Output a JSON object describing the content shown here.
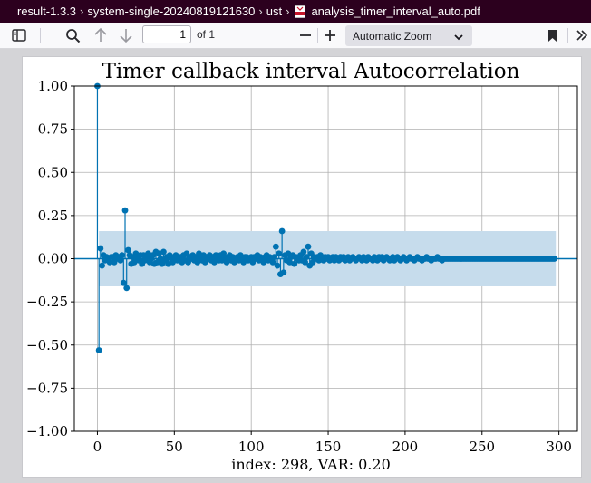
{
  "breadcrumb": {
    "items": [
      "result-1.3.3",
      "system-single-20240819121630",
      "ust"
    ],
    "file_name": "analysis_timer_interval_auto.pdf"
  },
  "toolbar": {
    "page_number": "1",
    "page_count_label": "of 1",
    "zoom_label": "Automatic Zoom"
  },
  "icons": [
    "sidebar-toggle-icon",
    "search-icon",
    "arrow-up-icon",
    "arrow-down-icon",
    "zoom-out-icon",
    "zoom-in-icon",
    "chevron-down-icon",
    "bookmark-icon",
    "double-chevron-right-icon",
    "pdf-file-icon"
  ],
  "colors": {
    "series": "#0072b2",
    "confidence_band": "#c6dcec",
    "breadcrumb_bg": "#2c001e"
  },
  "chart_data": {
    "type": "stem",
    "title": "Timer callback interval Autocorrelation",
    "xlabel": "index: 298, VAR: 0.20",
    "ylabel": "",
    "xlim": [
      -15,
      312
    ],
    "ylim": [
      -1.0,
      1.0
    ],
    "xticks": [
      "0",
      "50",
      "100",
      "150",
      "200",
      "250",
      "300"
    ],
    "yticks": [
      "1.00",
      "0.75",
      "0.50",
      "0.25",
      "0.00",
      "−0.25",
      "−0.50",
      "−0.75",
      "−1.00"
    ],
    "ytick_values": [
      1.0,
      0.75,
      0.5,
      0.25,
      0.0,
      -0.25,
      -0.5,
      -0.75,
      -1.0
    ],
    "xtick_values": [
      0,
      50,
      100,
      150,
      200,
      250,
      300
    ],
    "grid": true,
    "confidence_band": {
      "x_range": [
        1,
        298
      ],
      "upper": 0.16,
      "lower": -0.16
    },
    "points": [
      [
        0,
        1.0
      ],
      [
        1,
        -0.53
      ],
      [
        2,
        0.06
      ],
      [
        3,
        -0.04
      ],
      [
        4,
        0.02
      ],
      [
        5,
        -0.01
      ],
      [
        6,
        0.01
      ],
      [
        7,
        0.0
      ],
      [
        8,
        -0.02
      ],
      [
        9,
        0.01
      ],
      [
        10,
        0.01
      ],
      [
        11,
        -0.02
      ],
      [
        12,
        0.02
      ],
      [
        13,
        0.0
      ],
      [
        14,
        0.01
      ],
      [
        15,
        -0.01
      ],
      [
        16,
        0.02
      ],
      [
        17,
        -0.14
      ],
      [
        18,
        0.28
      ],
      [
        19,
        -0.17
      ],
      [
        20,
        0.05
      ],
      [
        21,
        0.02
      ],
      [
        22,
        -0.03
      ],
      [
        23,
        0.01
      ],
      [
        24,
        -0.02
      ],
      [
        25,
        0.03
      ],
      [
        26,
        0.0
      ],
      [
        27,
        -0.01
      ],
      [
        28,
        0.02
      ],
      [
        29,
        -0.03
      ],
      [
        30,
        0.02
      ],
      [
        31,
        -0.01
      ],
      [
        32,
        0.01
      ],
      [
        33,
        0.03
      ],
      [
        34,
        -0.02
      ],
      [
        35,
        0.0
      ],
      [
        36,
        0.02
      ],
      [
        37,
        -0.03
      ],
      [
        38,
        0.04
      ],
      [
        39,
        -0.02
      ],
      [
        40,
        0.03
      ],
      [
        41,
        0.0
      ],
      [
        42,
        -0.03
      ],
      [
        43,
        0.04
      ],
      [
        44,
        -0.01
      ],
      [
        45,
        0.01
      ],
      [
        46,
        -0.03
      ],
      [
        47,
        0.02
      ],
      [
        48,
        0.0
      ],
      [
        49,
        -0.02
      ],
      [
        50,
        0.01
      ],
      [
        51,
        0.02
      ],
      [
        52,
        -0.01
      ],
      [
        53,
        0.0
      ],
      [
        54,
        0.01
      ],
      [
        55,
        -0.02
      ],
      [
        56,
        0.02
      ],
      [
        57,
        -0.01
      ],
      [
        58,
        0.03
      ],
      [
        59,
        -0.02
      ],
      [
        60,
        0.01
      ],
      [
        61,
        0.0
      ],
      [
        62,
        0.02
      ],
      [
        63,
        -0.01
      ],
      [
        64,
        0.01
      ],
      [
        65,
        -0.02
      ],
      [
        66,
        0.03
      ],
      [
        67,
        0.0
      ],
      [
        68,
        -0.01
      ],
      [
        69,
        0.02
      ],
      [
        70,
        -0.02
      ],
      [
        71,
        0.01
      ],
      [
        72,
        0.0
      ],
      [
        73,
        0.02
      ],
      [
        74,
        -0.01
      ],
      [
        75,
        0.01
      ],
      [
        76,
        -0.02
      ],
      [
        77,
        0.02
      ],
      [
        78,
        0.0
      ],
      [
        79,
        -0.01
      ],
      [
        80,
        0.02
      ],
      [
        81,
        -0.01
      ],
      [
        82,
        0.03
      ],
      [
        83,
        0.0
      ],
      [
        84,
        -0.02
      ],
      [
        85,
        0.01
      ],
      [
        86,
        0.02
      ],
      [
        87,
        -0.01
      ],
      [
        88,
        0.01
      ],
      [
        89,
        -0.02
      ],
      [
        90,
        0.0
      ],
      [
        91,
        0.01
      ],
      [
        92,
        -0.01
      ],
      [
        93,
        0.02
      ],
      [
        94,
        0.0
      ],
      [
        95,
        -0.02
      ],
      [
        96,
        0.01
      ],
      [
        97,
        0.01
      ],
      [
        98,
        -0.01
      ],
      [
        99,
        0.0
      ],
      [
        100,
        0.01
      ],
      [
        101,
        -0.02
      ],
      [
        102,
        0.01
      ],
      [
        103,
        0.0
      ],
      [
        104,
        0.02
      ],
      [
        105,
        -0.01
      ],
      [
        106,
        0.01
      ],
      [
        107,
        0.0
      ],
      [
        108,
        -0.02
      ],
      [
        109,
        0.01
      ],
      [
        110,
        0.02
      ],
      [
        111,
        -0.01
      ],
      [
        112,
        0.01
      ],
      [
        113,
        0.0
      ],
      [
        114,
        -0.02
      ],
      [
        115,
        0.01
      ],
      [
        116,
        0.07
      ],
      [
        117,
        -0.04
      ],
      [
        118,
        0.03
      ],
      [
        119,
        -0.09
      ],
      [
        120,
        0.16
      ],
      [
        121,
        -0.08
      ],
      [
        122,
        0.02
      ],
      [
        123,
        -0.01
      ],
      [
        124,
        0.03
      ],
      [
        125,
        -0.02
      ],
      [
        126,
        0.01
      ],
      [
        127,
        0.02
      ],
      [
        128,
        -0.03
      ],
      [
        129,
        0.01
      ],
      [
        130,
        0.0
      ],
      [
        131,
        -0.01
      ],
      [
        132,
        0.02
      ],
      [
        133,
        -0.01
      ],
      [
        134,
        0.04
      ],
      [
        135,
        -0.02
      ],
      [
        136,
        0.01
      ],
      [
        137,
        0.07
      ],
      [
        138,
        -0.04
      ],
      [
        139,
        0.03
      ],
      [
        140,
        -0.02
      ],
      [
        141,
        0.01
      ],
      [
        142,
        0.0
      ],
      [
        143,
        0.01
      ],
      [
        144,
        -0.01
      ],
      [
        145,
        0.02
      ],
      [
        146,
        0.0
      ],
      [
        147,
        -0.01
      ],
      [
        148,
        0.01
      ],
      [
        149,
        0.0
      ],
      [
        150,
        0.01
      ],
      [
        151,
        -0.01
      ],
      [
        152,
        0.0
      ],
      [
        153,
        0.01
      ],
      [
        154,
        -0.01
      ],
      [
        155,
        0.01
      ],
      [
        156,
        0.0
      ],
      [
        157,
        -0.01
      ],
      [
        158,
        0.01
      ],
      [
        159,
        0.0
      ],
      [
        160,
        0.01
      ],
      [
        161,
        -0.01
      ],
      [
        162,
        0.0
      ],
      [
        163,
        0.01
      ],
      [
        164,
        -0.01
      ],
      [
        165,
        0.0
      ],
      [
        166,
        0.01
      ],
      [
        167,
        0.0
      ],
      [
        168,
        -0.01
      ],
      [
        169,
        0.0
      ],
      [
        170,
        0.01
      ],
      [
        171,
        0.0
      ],
      [
        172,
        -0.01
      ],
      [
        173,
        0.01
      ],
      [
        174,
        0.0
      ],
      [
        175,
        -0.01
      ],
      [
        176,
        0.01
      ],
      [
        177,
        0.0
      ],
      [
        178,
        0.0
      ],
      [
        179,
        -0.01
      ],
      [
        180,
        0.01
      ],
      [
        181,
        0.0
      ],
      [
        182,
        -0.01
      ],
      [
        183,
        0.01
      ],
      [
        184,
        0.0
      ],
      [
        185,
        0.01
      ],
      [
        186,
        -0.01
      ],
      [
        187,
        0.0
      ],
      [
        188,
        0.01
      ],
      [
        189,
        0.0
      ],
      [
        190,
        -0.01
      ],
      [
        191,
        0.0
      ],
      [
        192,
        0.01
      ],
      [
        193,
        -0.01
      ],
      [
        194,
        0.0
      ],
      [
        195,
        0.01
      ],
      [
        196,
        0.0
      ],
      [
        197,
        -0.01
      ],
      [
        198,
        0.0
      ],
      [
        199,
        0.01
      ],
      [
        200,
        0.0
      ],
      [
        201,
        -0.01
      ],
      [
        202,
        0.0
      ],
      [
        203,
        0.01
      ],
      [
        204,
        0.0
      ],
      [
        205,
        0.0
      ],
      [
        206,
        -0.01
      ],
      [
        207,
        0.0
      ],
      [
        208,
        0.01
      ],
      [
        209,
        0.0
      ],
      [
        210,
        0.0
      ],
      [
        211,
        -0.01
      ],
      [
        212,
        0.0
      ],
      [
        213,
        0.0
      ],
      [
        214,
        0.01
      ],
      [
        215,
        0.0
      ],
      [
        216,
        0.0
      ],
      [
        217,
        -0.01
      ],
      [
        218,
        0.0
      ],
      [
        219,
        0.0
      ],
      [
        220,
        0.0
      ],
      [
        221,
        0.01
      ],
      [
        222,
        0.0
      ],
      [
        223,
        0.0
      ],
      [
        224,
        -0.01
      ],
      [
        225,
        0.0
      ],
      [
        226,
        0.0
      ],
      [
        227,
        0.0
      ],
      [
        228,
        0.0
      ],
      [
        229,
        0.0
      ],
      [
        230,
        0.0
      ],
      [
        231,
        0.0
      ],
      [
        232,
        0.0
      ],
      [
        233,
        0.0
      ],
      [
        234,
        0.0
      ],
      [
        235,
        0.0
      ],
      [
        236,
        0.0
      ],
      [
        237,
        0.0
      ],
      [
        238,
        0.0
      ],
      [
        239,
        0.0
      ],
      [
        240,
        0.0
      ],
      [
        241,
        0.0
      ],
      [
        242,
        0.0
      ],
      [
        243,
        0.0
      ],
      [
        244,
        0.0
      ],
      [
        245,
        0.0
      ],
      [
        246,
        0.0
      ],
      [
        247,
        0.0
      ],
      [
        248,
        0.0
      ],
      [
        249,
        0.0
      ],
      [
        250,
        0.0
      ],
      [
        251,
        0.0
      ],
      [
        252,
        0.0
      ],
      [
        253,
        0.0
      ],
      [
        254,
        0.0
      ],
      [
        255,
        0.0
      ],
      [
        256,
        0.0
      ],
      [
        257,
        0.0
      ],
      [
        258,
        0.0
      ],
      [
        259,
        0.0
      ],
      [
        260,
        0.0
      ],
      [
        261,
        0.0
      ],
      [
        262,
        0.0
      ],
      [
        263,
        0.0
      ],
      [
        264,
        0.0
      ],
      [
        265,
        0.0
      ],
      [
        266,
        0.0
      ],
      [
        267,
        0.0
      ],
      [
        268,
        0.0
      ],
      [
        269,
        0.0
      ],
      [
        270,
        0.0
      ],
      [
        271,
        0.0
      ],
      [
        272,
        0.0
      ],
      [
        273,
        0.0
      ],
      [
        274,
        0.0
      ],
      [
        275,
        0.0
      ],
      [
        276,
        0.0
      ],
      [
        277,
        0.0
      ],
      [
        278,
        0.0
      ],
      [
        279,
        0.0
      ],
      [
        280,
        0.0
      ],
      [
        281,
        0.0
      ],
      [
        282,
        0.0
      ],
      [
        283,
        0.0
      ],
      [
        284,
        0.0
      ],
      [
        285,
        0.0
      ],
      [
        286,
        0.0
      ],
      [
        287,
        0.0
      ],
      [
        288,
        0.0
      ],
      [
        289,
        0.0
      ],
      [
        290,
        0.0
      ],
      [
        291,
        0.0
      ],
      [
        292,
        0.0
      ],
      [
        293,
        0.0
      ],
      [
        294,
        0.0
      ],
      [
        295,
        0.0
      ],
      [
        296,
        0.0
      ],
      [
        297,
        0.0
      ]
    ]
  }
}
